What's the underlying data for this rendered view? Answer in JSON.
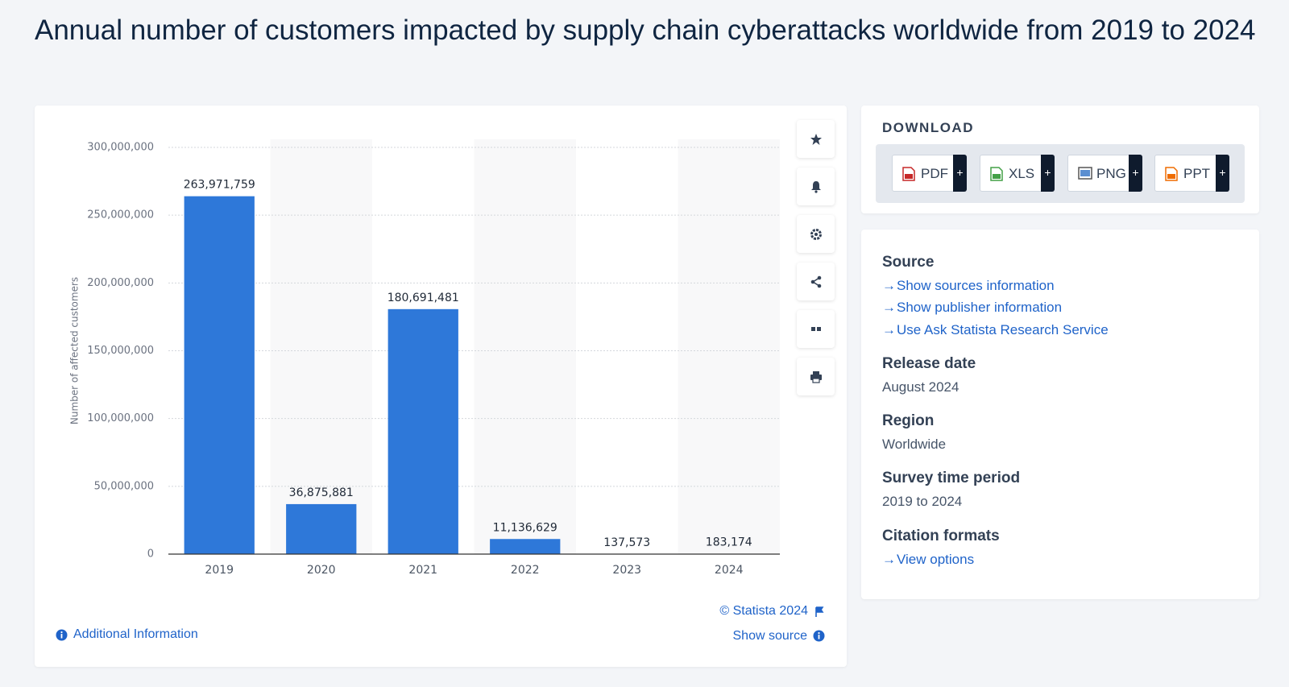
{
  "header": {
    "title": "Annual number of customers impacted by supply chain cyberattacks worldwide from 2019 to 2024"
  },
  "chart_data": {
    "type": "bar",
    "y_label": "Number of affected customers",
    "categories": [
      "2019",
      "2020",
      "2021",
      "2022",
      "2023",
      "2024"
    ],
    "values": [
      263971759,
      36875881,
      180691481,
      11136629,
      137573,
      183174
    ],
    "value_labels": [
      "263,971,759",
      "36,875,881",
      "180,691,481",
      "11,136,629",
      "137,573",
      "183,174"
    ],
    "color": "#2e78d9",
    "ylim": [
      0,
      300000000
    ],
    "yticks": [
      0,
      {
        "value": 50000000,
        "label": "50,000,000"
      },
      {
        "value": 100000000,
        "label": "100,000,000"
      },
      {
        "value": 150000000,
        "label": "150,000,000"
      },
      {
        "value": 200000000,
        "label": "200,000,000"
      },
      {
        "value": 250000000,
        "label": "250,000,000"
      },
      {
        "value": 300000000,
        "label": "300,000,000"
      }
    ],
    "grid": true
  },
  "chart_footer": {
    "copyright": "© Statista 2024",
    "show_source": "Show source",
    "additional_information": "Additional Information"
  },
  "download": {
    "title": "DOWNLOAD",
    "formats": [
      "PDF",
      "XLS",
      "PNG",
      "PPT"
    ],
    "more": "+"
  },
  "details": {
    "source": {
      "heading": "Source",
      "links": [
        "Show sources information",
        "Show publisher information",
        "Use Ask Statista Research Service"
      ]
    },
    "release_date": {
      "heading": "Release date",
      "value": "August 2024"
    },
    "region": {
      "heading": "Region",
      "value": "Worldwide"
    },
    "survey_period": {
      "heading": "Survey time period",
      "value": "2019 to 2024"
    },
    "citation": {
      "heading": "Citation formats",
      "link": "View options"
    }
  }
}
